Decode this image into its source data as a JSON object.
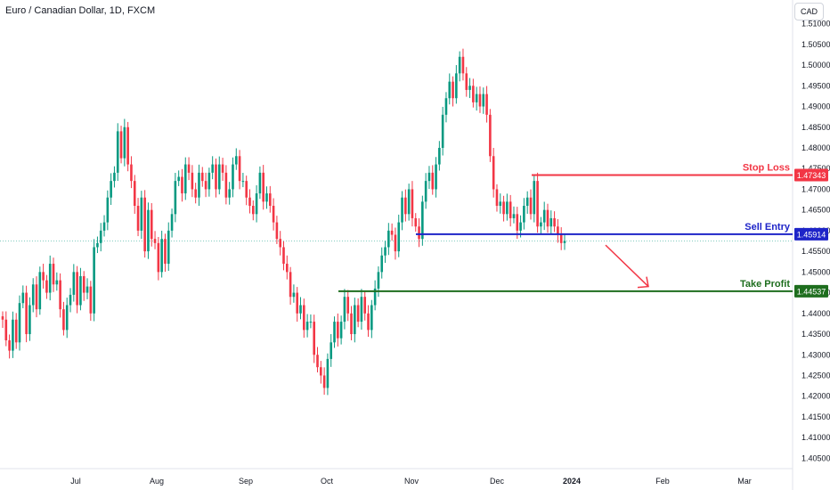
{
  "header": {
    "title": "Euro / Canadian Dollar, 1D, FXCM",
    "currency_button": "CAD"
  },
  "chart_data": {
    "type": "candlestick",
    "symbol": "EURCAD",
    "interval": "1D",
    "source": "FXCM",
    "up_color": "#089981",
    "down_color": "#f23645",
    "y_axis": {
      "ylim": [
        1.4025,
        1.5125
      ],
      "ticks": [
        "1.51000",
        "1.50500",
        "1.50000",
        "1.49500",
        "1.49000",
        "1.48500",
        "1.48000",
        "1.47500",
        "1.47000",
        "1.46500",
        "1.46000",
        "1.45500",
        "1.45000",
        "1.44500",
        "1.44000",
        "1.43500",
        "1.43000",
        "1.42500",
        "1.42000",
        "1.41500",
        "1.41000",
        "1.40500"
      ]
    },
    "x_axis": {
      "ticks": [
        "Jul",
        "Aug",
        "Sep",
        "Oct",
        "Nov",
        "Dec",
        "2024",
        "Feb",
        "Mar"
      ]
    },
    "levels": [
      {
        "name": "Stop Loss",
        "value": "1.47343",
        "color": "#f23645"
      },
      {
        "name": "Sell Entry",
        "value": "1.45914",
        "color": "#1e24c8"
      },
      {
        "name": "Take Profit",
        "value": "1.44537",
        "color": "#1e6e1e"
      }
    ],
    "current_price": 1.4575,
    "projection": {
      "from": 1.4565,
      "to": 1.4465,
      "color": "#f23645"
    },
    "closes": [
      1.4385,
      1.4335,
      1.431,
      1.4385,
      1.433,
      1.4425,
      1.445,
      1.435,
      1.442,
      1.447,
      1.441,
      1.45,
      1.448,
      1.445,
      1.452,
      1.447,
      1.448,
      1.441,
      1.436,
      1.442,
      1.4445,
      1.45,
      1.442,
      1.449,
      1.445,
      1.4465,
      1.44,
      1.456,
      1.457,
      1.46,
      1.462,
      1.468,
      1.472,
      1.474,
      1.484,
      1.4775,
      1.485,
      1.476,
      1.472,
      1.466,
      1.46,
      1.468,
      1.455,
      1.465,
      1.458,
      1.457,
      1.45,
      1.458,
      1.452,
      1.46,
      1.464,
      1.472,
      1.473,
      1.469,
      1.476,
      1.474,
      1.47,
      1.468,
      1.474,
      1.472,
      1.47,
      1.474,
      1.476,
      1.47,
      1.476,
      1.474,
      1.468,
      1.47,
      1.476,
      1.478,
      1.472,
      1.472,
      1.468,
      1.466,
      1.464,
      1.469,
      1.474,
      1.467,
      1.469,
      1.466,
      1.462,
      1.458,
      1.456,
      1.452,
      1.45,
      1.444,
      1.445,
      1.44,
      1.442,
      1.436,
      1.438,
      1.438,
      1.43,
      1.427,
      1.425,
      1.422,
      1.429,
      1.433,
      1.438,
      1.434,
      1.438,
      1.444,
      1.44,
      1.435,
      1.442,
      1.438,
      1.444,
      1.44,
      1.436,
      1.442,
      1.446,
      1.45,
      1.454,
      1.456,
      1.46,
      1.459,
      1.455,
      1.462,
      1.468,
      1.464,
      1.47,
      1.463,
      1.461,
      1.458,
      1.467,
      1.472,
      1.474,
      1.47,
      1.476,
      1.48,
      1.488,
      1.492,
      1.496,
      1.492,
      1.498,
      1.502,
      1.498,
      1.494,
      1.495,
      1.491,
      1.493,
      1.49,
      1.493,
      1.488,
      1.478,
      1.47,
      1.466,
      1.467,
      1.464,
      1.467,
      1.463,
      1.464,
      1.46,
      1.462,
      1.466,
      1.468,
      1.464,
      1.472,
      1.461,
      1.462,
      1.465,
      1.461,
      1.463,
      1.461,
      1.459,
      1.457,
      1.4575
    ]
  }
}
